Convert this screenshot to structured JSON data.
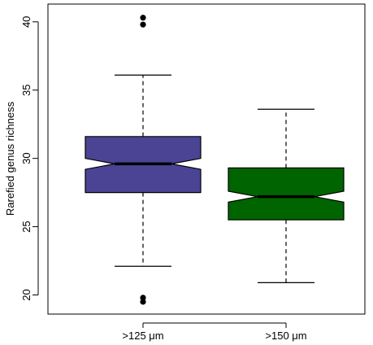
{
  "chart_data": {
    "type": "boxplot",
    "title": "",
    "xlabel": "",
    "ylabel": "Rarefied genus richness",
    "ylim": [
      18.6,
      41.3
    ],
    "y_ticks": [
      20,
      25,
      30,
      35,
      40
    ],
    "grid": false,
    "legend": "none",
    "notched": true,
    "categories": [
      ">125 μm",
      ">150 μm"
    ],
    "boxes": [
      {
        "category": ">125 μm",
        "color": "#4b4494",
        "whisker_low": 22.1,
        "q1": 27.5,
        "median": 29.6,
        "q3": 31.6,
        "whisker_high": 36.1,
        "notch_low": 29.2,
        "notch_high": 30.0,
        "outliers": [
          40.3,
          39.8,
          19.8,
          19.5
        ]
      },
      {
        "category": ">150 μm",
        "color": "#006400",
        "whisker_low": 20.9,
        "q1": 25.5,
        "median": 27.2,
        "q3": 29.3,
        "whisker_high": 33.6,
        "notch_low": 26.8,
        "notch_high": 27.6,
        "outliers": []
      }
    ]
  }
}
